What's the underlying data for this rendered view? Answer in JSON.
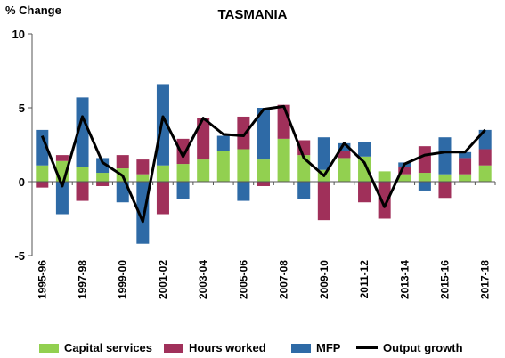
{
  "chart_data": {
    "type": "bar",
    "stacked": true,
    "title": "TASMANIA",
    "ylabel": "% Change",
    "xlabel": "",
    "ylim": [
      -5,
      10
    ],
    "yticks": [
      -5,
      0,
      5,
      10
    ],
    "grid": false,
    "legend_position": "bottom",
    "categories": [
      "1995-96",
      "1996-97",
      "1997-98",
      "1998-99",
      "1999-00",
      "2000-01",
      "2001-02",
      "2002-03",
      "2003-04",
      "2004-05",
      "2005-06",
      "2006-07",
      "2007-08",
      "2008-09",
      "2009-10",
      "2010-11",
      "2011-12",
      "2012-13",
      "2013-14",
      "2014-15",
      "2015-16",
      "2016-17",
      "2017-18"
    ],
    "labeled_categories": [
      "1995-96",
      "1997-98",
      "1999-00",
      "2001-02",
      "2003-04",
      "2005-06",
      "2007-08",
      "2009-10",
      "2011-12",
      "2013-14",
      "2015-16",
      "2017-18"
    ],
    "series": [
      {
        "name": "Capital services",
        "kind": "bar",
        "color": "#92d050",
        "values": [
          1.1,
          1.4,
          1.0,
          0.6,
          0.9,
          0.5,
          1.1,
          1.2,
          1.5,
          2.1,
          2.2,
          1.5,
          2.9,
          1.8,
          0.8,
          1.6,
          1.7,
          0.7,
          0.5,
          0.6,
          0.5,
          0.5,
          1.1
        ]
      },
      {
        "name": "Hours worked",
        "kind": "bar",
        "color": "#a0305a",
        "values": [
          -0.4,
          0.4,
          -1.3,
          -0.3,
          0.9,
          1.0,
          -2.2,
          1.7,
          2.8,
          0.0,
          2.2,
          -0.3,
          2.3,
          1.0,
          -2.6,
          0.5,
          -1.4,
          -2.5,
          0.5,
          1.8,
          -1.1,
          1.1,
          1.1
        ]
      },
      {
        "name": "MFP",
        "kind": "bar",
        "color": "#2e6aa6",
        "values": [
          2.4,
          -2.2,
          4.7,
          1.0,
          -1.4,
          -4.2,
          5.5,
          -1.2,
          0.0,
          1.0,
          -1.3,
          3.5,
          0.0,
          -1.2,
          2.2,
          0.5,
          1.0,
          0.0,
          0.3,
          -0.6,
          2.5,
          0.4,
          1.3
        ]
      },
      {
        "name": "Output growth",
        "kind": "line",
        "color": "#000000",
        "values": [
          3.1,
          -0.3,
          4.4,
          1.3,
          0.4,
          -2.7,
          4.4,
          1.7,
          4.3,
          3.2,
          3.1,
          4.9,
          5.1,
          1.6,
          0.4,
          2.6,
          1.3,
          -1.7,
          1.2,
          1.8,
          2.0,
          2.0,
          3.5
        ]
      }
    ]
  }
}
